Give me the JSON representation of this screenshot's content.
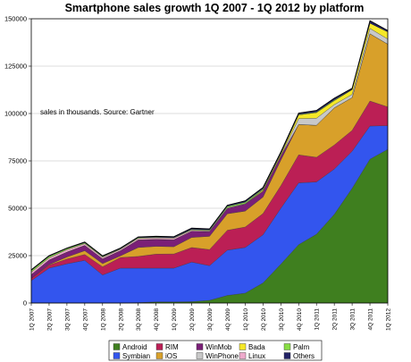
{
  "chart_data": {
    "type": "area",
    "stacked": true,
    "title": "Smartphone sales growth 1Q 2007 - 1Q 2012 by platform",
    "annotation": "sales in thousands. Source: Gartner",
    "xlabel": "",
    "ylabel": "",
    "ylim": [
      0,
      150000
    ],
    "yticks": [
      "0",
      "25000",
      "50000",
      "75000",
      "100000",
      "125000",
      "150000"
    ],
    "grid": true,
    "legend": "bottom",
    "categories": [
      "1Q 2007",
      "2Q 2007",
      "3Q 2007",
      "4Q 2007",
      "1Q 2008",
      "2Q 2008",
      "3Q 2008",
      "4Q 2008",
      "1Q 2009",
      "2Q 2009",
      "3Q 2009",
      "4Q 2009",
      "1Q 2010",
      "2Q 2010",
      "3Q 2010",
      "4Q 2010",
      "1Q 2011",
      "2Q 2011",
      "3Q 2011",
      "4Q 2011",
      "1Q 2012"
    ],
    "series": [
      {
        "name": "Android",
        "color": "#3f7f1f",
        "values": [
          0,
          0,
          0,
          0,
          0,
          0,
          200,
          600,
          600,
          700,
          1400,
          4000,
          5200,
          10600,
          20500,
          30800,
          36300,
          46800,
          60500,
          75900,
          81100
        ]
      },
      {
        "name": "Symbian",
        "color": "#3355ee",
        "values": [
          11800,
          18400,
          20700,
          22500,
          14800,
          18400,
          18200,
          17800,
          17800,
          20900,
          18300,
          23900,
          24100,
          25400,
          29500,
          32600,
          27600,
          23900,
          19600,
          17500,
          12500
        ]
      },
      {
        "name": "RIM",
        "color": "#bb1f55",
        "values": [
          1200,
          1600,
          2500,
          3100,
          4300,
          5600,
          6200,
          7400,
          7500,
          7700,
          8500,
          10500,
          10800,
          11200,
          11900,
          14800,
          13000,
          12700,
          11000,
          13200,
          9900
        ]
      },
      {
        "name": "iOS",
        "color": "#d8a02a",
        "values": [
          0,
          300,
          1100,
          2000,
          1700,
          900,
          4700,
          4100,
          3800,
          5300,
          7000,
          8700,
          8400,
          8700,
          13500,
          16000,
          16900,
          19600,
          17300,
          35500,
          33100
        ]
      },
      {
        "name": "WinMob",
        "color": "#7a1f77",
        "values": [
          2000,
          2400,
          2600,
          2800,
          2500,
          2700,
          4000,
          3700,
          3700,
          3300,
          2500,
          2800,
          3700,
          3100,
          2200,
          0,
          0,
          0,
          0,
          0,
          0
        ]
      },
      {
        "name": "WinPhone",
        "color": "#c8c8c8",
        "values": [
          0,
          0,
          0,
          0,
          0,
          0,
          0,
          0,
          0,
          0,
          0,
          0,
          0,
          0,
          0,
          3100,
          3700,
          1700,
          1700,
          2800,
          2700
        ]
      },
      {
        "name": "Bada",
        "color": "#f5e827",
        "values": [
          0,
          0,
          0,
          0,
          0,
          0,
          0,
          0,
          0,
          0,
          0,
          0,
          0,
          600,
          900,
          2000,
          3000,
          2100,
          2500,
          2800,
          3800
        ]
      },
      {
        "name": "Linux",
        "color": "#eeaacc",
        "values": [
          1200,
          1100,
          1200,
          900,
          800,
          700,
          800,
          800,
          800,
          600,
          400,
          400,
          300,
          200,
          100,
          0,
          0,
          0,
          0,
          0,
          0
        ]
      },
      {
        "name": "Palm",
        "color": "#88dd44",
        "values": [
          900,
          800,
          600,
          500,
          400,
          300,
          400,
          300,
          300,
          400,
          400,
          700,
          700,
          500,
          400,
          300,
          300,
          400,
          100,
          0,
          0
        ]
      },
      {
        "name": "Others",
        "color": "#222266",
        "values": [
          400,
          400,
          300,
          400,
          400,
          400,
          400,
          500,
          500,
          600,
          600,
          600,
          700,
          700,
          700,
          600,
          800,
          900,
          600,
          1300,
          700
        ]
      }
    ]
  }
}
